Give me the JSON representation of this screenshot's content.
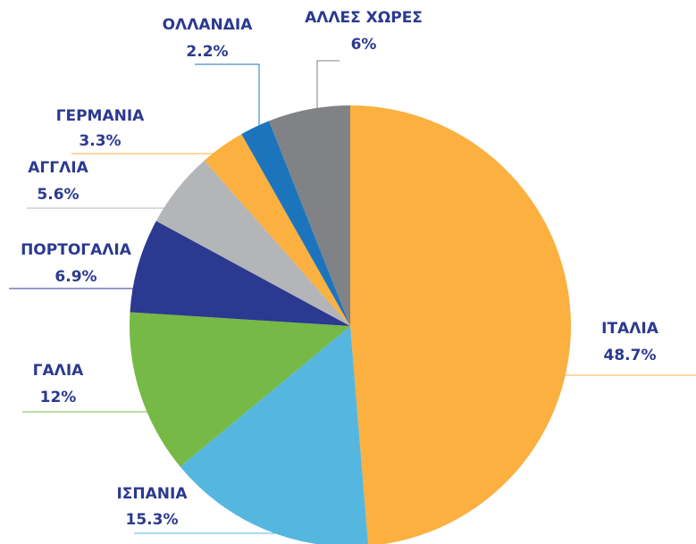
{
  "chart_data": {
    "type": "pie",
    "categories": [
      "ΙΤΑΛΙΑ",
      "ΙΣΠΑΝΙΑ",
      "ΓΑΛΙΑ",
      "ΠΟΡΤΟΓΑΛΙΑ",
      "ΑΓΓΛΙΑ",
      "ΓΕΡΜΑΝΙΑ",
      "ΟΛΛΑΝΔΙΑ",
      "ΑΛΛΕΣ ΧΩΡΕΣ"
    ],
    "values": [
      48.7,
      15.3,
      12,
      6.9,
      5.6,
      3.3,
      2.2,
      6
    ],
    "value_labels": [
      "48.7%",
      "15.3%",
      "12%",
      "6.9%",
      "5.6%",
      "3.3%",
      "2.2%",
      "6%"
    ],
    "colors": [
      "#fbb040",
      "#55b6e0",
      "#76b947",
      "#2b3990",
      "#b3b5b8",
      "#fbb040",
      "#1c75bc",
      "#808285"
    ]
  }
}
